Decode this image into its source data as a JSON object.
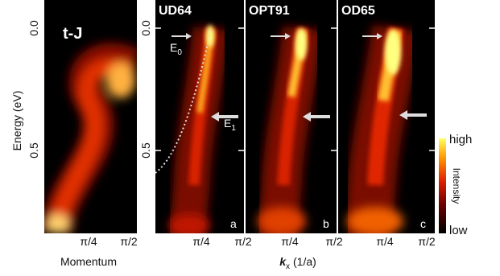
{
  "left_panel": {
    "label": "t-J",
    "y_axis_label": "Energy (eV)",
    "y_ticks": [
      "0.0",
      "0.5"
    ],
    "x_ticks": [
      "π/4",
      "π/2"
    ],
    "x_axis_label": "Momentum"
  },
  "panels": [
    {
      "title": "UD64",
      "letter": "a",
      "e0": {
        "symbol": "E",
        "sub": "0"
      },
      "e1": {
        "symbol": "E",
        "sub": "1"
      }
    },
    {
      "title": "OPT91",
      "letter": "b"
    },
    {
      "title": "OD65",
      "letter": "c"
    }
  ],
  "y_ticks": [
    "0.0",
    "0.5"
  ],
  "x_ticks": [
    "π/4",
    "π/2"
  ],
  "x_axis_label": {
    "symbol": "k",
    "sub": "x",
    "unit": "(1/a)"
  },
  "colorbar": {
    "high": "high",
    "label": "Intensity",
    "low": "low"
  }
}
